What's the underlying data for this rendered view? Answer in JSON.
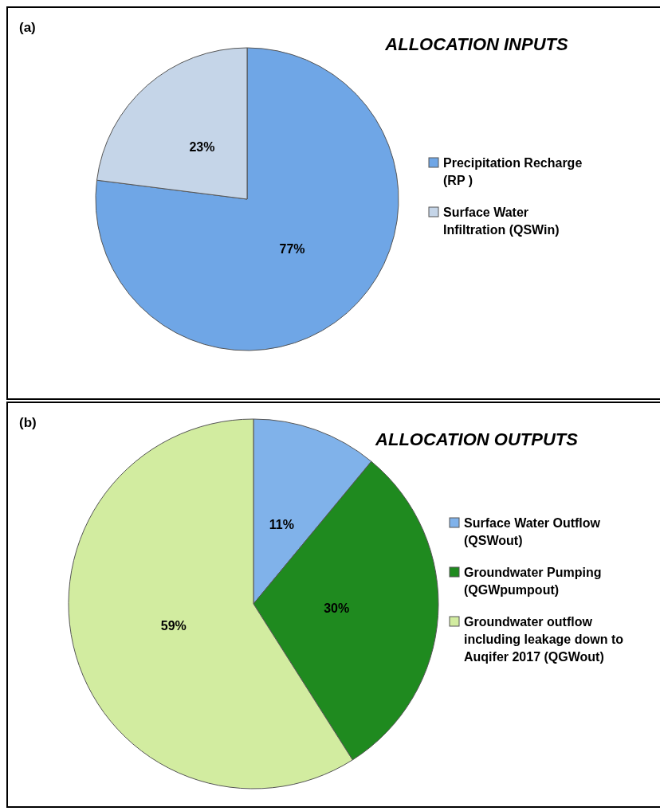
{
  "chart_data": [
    {
      "type": "pie",
      "title": "ALLOCATION INPUTS",
      "annotations": [
        "(a)"
      ],
      "categories": [
        "Precipitation Recharge (RP )",
        "Surface Water Infiltration (QSWin)"
      ],
      "values": [
        77,
        23
      ],
      "colors": [
        "#6fa6e6",
        "#c5d5e8"
      ],
      "value_labels": [
        "77%",
        "23%"
      ],
      "legend": "right"
    },
    {
      "type": "pie",
      "title": "ALLOCATION OUTPUTS",
      "annotations": [
        "(b)"
      ],
      "categories": [
        "Surface Water Outflow (QSWout)",
        "Groundwater Pumping (QGWpumpout)",
        "Groundwater outflow including leakage down to Auqifer 2017 (QGWout)"
      ],
      "values": [
        11,
        30,
        59
      ],
      "colors": [
        "#80b2ea",
        "#1f8a1f",
        "#d2eca0"
      ],
      "value_labels": [
        "11%",
        "30%",
        "59%"
      ],
      "legend": "right"
    }
  ]
}
